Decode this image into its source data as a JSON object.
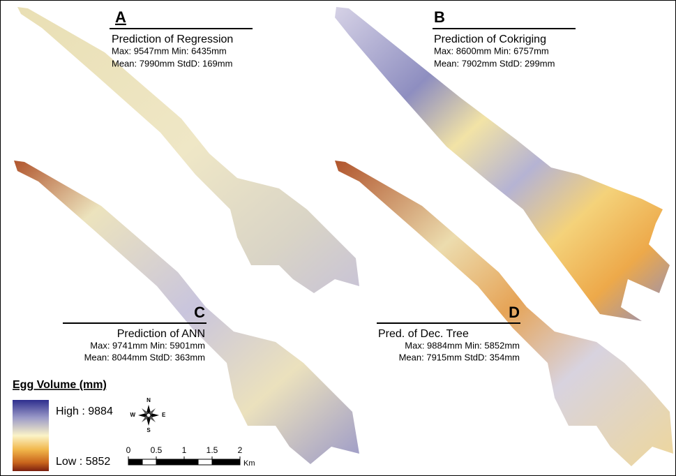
{
  "panels": [
    {
      "letter": "A",
      "title": "Prediction of Regression",
      "stats": [
        "Max: 9547mm  Min: 6435mm",
        "Mean: 7990mm  StdD: 169mm"
      ]
    },
    {
      "letter": "B",
      "title": "Prediction of Cokriging",
      "stats": [
        "Max: 8600mm  Min: 6757mm",
        "Mean: 7902mm  StdD: 299mm"
      ]
    },
    {
      "letter": "C",
      "title": "Prediction of ANN",
      "stats": [
        "Max: 9741mm  Min: 5901mm",
        "Mean: 8044mm  StdD: 363mm"
      ]
    },
    {
      "letter": "D",
      "title": "Pred. of Dec. Tree",
      "stats": [
        "Max: 9884mm  Min: 5852mm",
        "Mean: 7915mm  StdD: 354mm"
      ]
    }
  ],
  "legend": {
    "title": "Egg Volume (mm)",
    "high": "High : 9884",
    "low": "Low : 5852"
  },
  "compass": {
    "n": "N",
    "s": "S",
    "e": "E",
    "w": "W"
  },
  "scale_bar": {
    "ticks": [
      0,
      0.5,
      1,
      1.5,
      2
    ],
    "unit": "Km"
  }
}
